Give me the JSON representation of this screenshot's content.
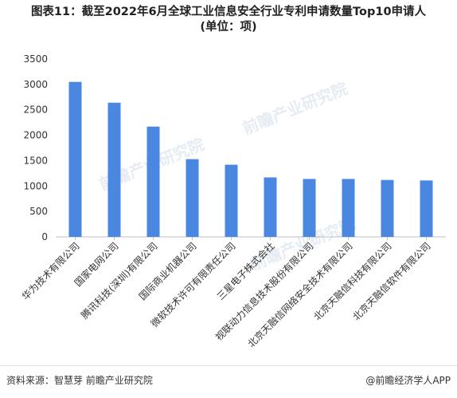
{
  "title_line1": "图表11：截至2022年6月全球工业信息安全行业专利申请数量Top10申请人",
  "title_line2": "(单位：项)",
  "source": "资料来源：智慧芽 前瞻产业研究院",
  "brand": "@前瞻经济学人APP",
  "watermark": "前瞻产业研究院",
  "colors": {
    "bar": "#4a87e0",
    "axis": "#bfbfbf",
    "text": "#333333"
  },
  "chart_data": {
    "type": "bar",
    "title": "图表11：截至2022年6月全球工业信息安全行业专利申请数量Top10申请人",
    "subtitle": "(单位：项)",
    "xlabel": "",
    "ylabel": "",
    "ylim": [
      0,
      3500
    ],
    "yticks": [
      0,
      500,
      1000,
      1500,
      2000,
      2500,
      3000,
      3500
    ],
    "grid": false,
    "categories": [
      "华为技术有限公司",
      "国家电网公司",
      "腾讯科技(深圳)有限公司",
      "国际商业机器公司",
      "微软技术许可有限责任公司",
      "三星电子株式会社",
      "视联动力信息技术股份有限公司",
      "北京天融信网络安全技术有限公司",
      "北京天融信科技有限公司",
      "北京天融信软件有限公司"
    ],
    "values": [
      3050,
      2640,
      2170,
      1530,
      1420,
      1170,
      1140,
      1140,
      1120,
      1110
    ]
  }
}
